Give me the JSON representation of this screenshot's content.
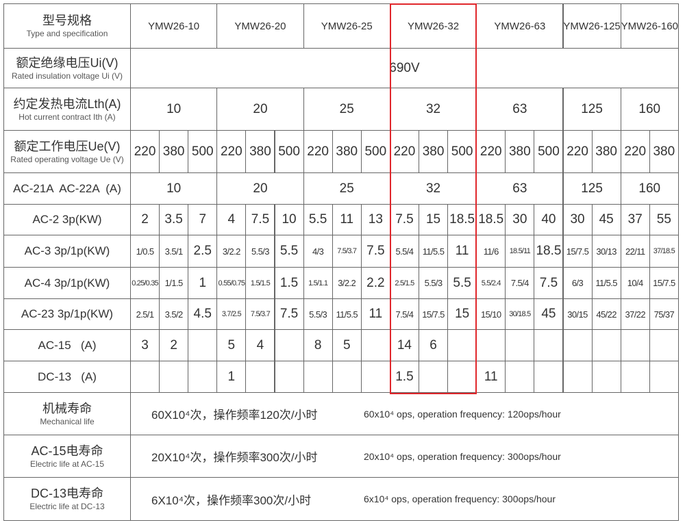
{
  "header": {
    "label_cn": "型号规格",
    "label_en": "Type and specification",
    "models": [
      "YMW26-10",
      "YMW26-20",
      "YMW26-25",
      "YMW26-32",
      "YMW26-63",
      "YMW26-125",
      "YMW26-160"
    ]
  },
  "rows": [
    {
      "label_cn": "额定绝缘电压Ui(V)",
      "label_en": "Rated insulation voltage Ui (V)",
      "value": "690V"
    },
    {
      "label_cn": "约定发热电流Lth(A)",
      "label_en": "Hot current contract Ith (A)",
      "values": [
        10,
        20,
        25,
        32,
        63,
        125,
        160
      ]
    },
    {
      "label_cn": "额定工作电压Ue(V)",
      "label_en": "Rated operating voltage Ue (V)",
      "values": [
        220,
        380,
        500,
        220,
        380,
        500,
        220,
        380,
        500,
        220,
        380,
        500,
        220,
        380,
        500,
        220,
        380,
        220,
        380
      ]
    },
    {
      "label": "AC-21A  AC-22A  (A)",
      "values": [
        10,
        20,
        25,
        32,
        63,
        125,
        160
      ]
    },
    {
      "label": "AC-2 3p(KW)",
      "values": [
        2,
        3.5,
        7,
        4,
        7.5,
        10,
        5.5,
        11,
        13,
        7.5,
        15,
        18.5,
        18.5,
        30,
        40,
        30,
        45,
        37,
        55
      ]
    },
    {
      "label": "AC-3 3p/1p(KW)",
      "values": [
        "1/0.5",
        "3.5/1",
        2.5,
        "3/2.2",
        "5.5/3",
        5.5,
        "4/3",
        "7.5/3.7",
        7.5,
        "5.5/4",
        "11/5.5",
        11,
        "11/6",
        "18.5/11",
        18.5,
        "15/7.5",
        "30/13",
        "22/11",
        "37/18.5"
      ]
    },
    {
      "label": "AC-4 3p/1p(KW)",
      "values": [
        "0.25/0.35",
        "1/1.5",
        1,
        "0.55/0.75",
        "1.5/1.5",
        1.5,
        "1.5/1.1",
        "3/2.2",
        2.2,
        "2.5/1.5",
        "5.5/3",
        5.5,
        "5.5/2.4",
        "7.5/4",
        7.5,
        "6/3",
        "11/5.5",
        "10/4",
        "15/7.5"
      ]
    },
    {
      "label": "AC-23 3p/1p(KW)",
      "values": [
        "2.5/1",
        "3.5/2",
        4.5,
        "3.7/2.5",
        "7.5/3.7",
        7.5,
        "5.5/3",
        "11/5.5",
        11,
        "7.5/4",
        "15/7.5",
        15,
        "15/10",
        "30/18.5",
        45,
        "30/15",
        "45/22",
        "37/22",
        "75/37"
      ]
    },
    {
      "label": "AC-15   (A)",
      "values": [
        3,
        2,
        null,
        5,
        4,
        null,
        8,
        5,
        null,
        14,
        6,
        null,
        null,
        null,
        null,
        null,
        null,
        null,
        null
      ]
    },
    {
      "label": "DC-13   (A)",
      "values": [
        null,
        null,
        null,
        1,
        null,
        null,
        null,
        null,
        null,
        1.5,
        null,
        null,
        11,
        null,
        null,
        null,
        null,
        null,
        null
      ]
    }
  ],
  "life": [
    {
      "label_cn": "机械寿命",
      "label_en": "Mechanical life",
      "cn": "60X10⁴次，操作频率120次/小时",
      "en": "60x10⁴ ops, operation frequency: 120ops/hour"
    },
    {
      "label_cn": "AC-15电寿命",
      "label_en": "Electric life at AC-15",
      "cn": "20X10⁴次，操作频率300次/小时",
      "en": "20x10⁴ ops, operation frequency: 300ops/hour"
    },
    {
      "label_cn": "DC-13电寿命",
      "label_en": "Electric life at DC-13",
      "cn": "6X10⁴次，操作频率300次/小时",
      "en": "6x10⁴ ops, operation frequency: 300ops/hour"
    }
  ]
}
